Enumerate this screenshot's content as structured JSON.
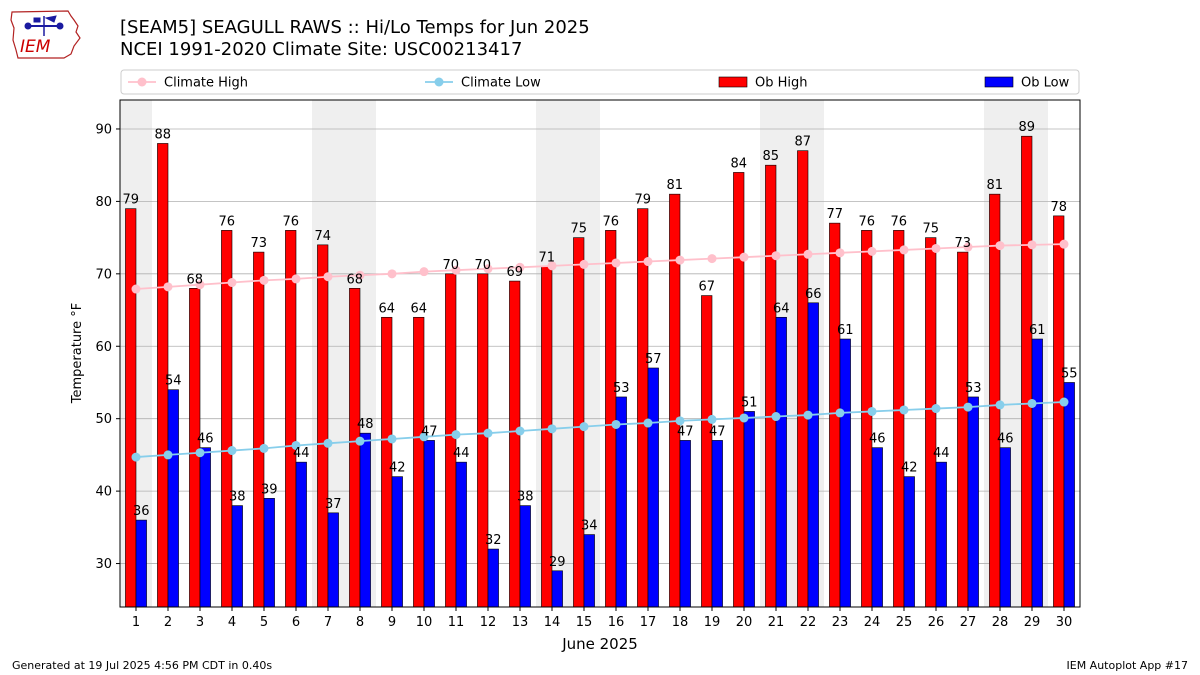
{
  "header": {
    "title_line1": "[SEAM5] SEAGULL RAWS :: Hi/Lo Temps for Jun 2025",
    "title_line2": "NCEI 1991-2020 Climate Site: USC00213417"
  },
  "logo": {
    "text": "IEM"
  },
  "footer": {
    "left": "Generated at 19 Jul 2025 4:56 PM CDT in 0.40s",
    "right": "IEM Autoplot App #17"
  },
  "chart_data": {
    "type": "bar",
    "xlabel": "June 2025",
    "ylabel": "Temperature °F",
    "ylim": [
      24,
      94
    ],
    "yticks": [
      30,
      40,
      50,
      60,
      70,
      80,
      90
    ],
    "grid": true,
    "legend_position": "top",
    "categories": [
      "1",
      "2",
      "3",
      "4",
      "5",
      "6",
      "7",
      "8",
      "9",
      "10",
      "11",
      "12",
      "13",
      "14",
      "15",
      "16",
      "17",
      "18",
      "19",
      "20",
      "21",
      "22",
      "23",
      "24",
      "25",
      "26",
      "27",
      "28",
      "29",
      "30"
    ],
    "weekend_shading_days": [
      1,
      7,
      8,
      14,
      15,
      21,
      22,
      28,
      29
    ],
    "series": [
      {
        "name": "Ob High",
        "kind": "bar",
        "color": "#ff0000",
        "values": [
          79,
          88,
          68,
          76,
          73,
          76,
          74,
          68,
          64,
          64,
          70,
          70,
          69,
          71,
          75,
          76,
          79,
          81,
          67,
          84,
          85,
          87,
          77,
          76,
          76,
          75,
          73,
          81,
          89,
          78
        ]
      },
      {
        "name": "Ob Low",
        "kind": "bar",
        "color": "#0000ff",
        "values": [
          36,
          54,
          46,
          38,
          39,
          44,
          37,
          48,
          42,
          47,
          44,
          32,
          38,
          29,
          34,
          53,
          57,
          47,
          47,
          51,
          64,
          66,
          61,
          46,
          42,
          44,
          53,
          46,
          61,
          55
        ]
      },
      {
        "name": "Climate High",
        "kind": "line",
        "color": "#ffc0cb",
        "values": [
          67.9,
          68.2,
          68.5,
          68.8,
          69.1,
          69.3,
          69.6,
          69.8,
          70.0,
          70.3,
          70.5,
          70.7,
          70.9,
          71.1,
          71.3,
          71.5,
          71.7,
          71.9,
          72.1,
          72.3,
          72.5,
          72.7,
          72.9,
          73.1,
          73.3,
          73.5,
          73.7,
          73.9,
          74.0,
          74.1
        ]
      },
      {
        "name": "Climate Low",
        "kind": "line",
        "color": "#87ceeb",
        "values": [
          44.7,
          45.0,
          45.3,
          45.6,
          45.9,
          46.3,
          46.6,
          46.9,
          47.2,
          47.5,
          47.8,
          48.0,
          48.3,
          48.6,
          48.9,
          49.2,
          49.4,
          49.7,
          49.9,
          50.1,
          50.3,
          50.5,
          50.8,
          51.0,
          51.2,
          51.4,
          51.6,
          51.9,
          52.1,
          52.3
        ]
      }
    ],
    "legend": [
      {
        "label": "Climate High",
        "marker": "line",
        "color": "#ffc0cb"
      },
      {
        "label": "Climate Low",
        "marker": "line",
        "color": "#87ceeb"
      },
      {
        "label": "Ob High",
        "marker": "patch",
        "color": "#ff0000"
      },
      {
        "label": "Ob Low",
        "marker": "patch",
        "color": "#0000ff"
      }
    ]
  }
}
